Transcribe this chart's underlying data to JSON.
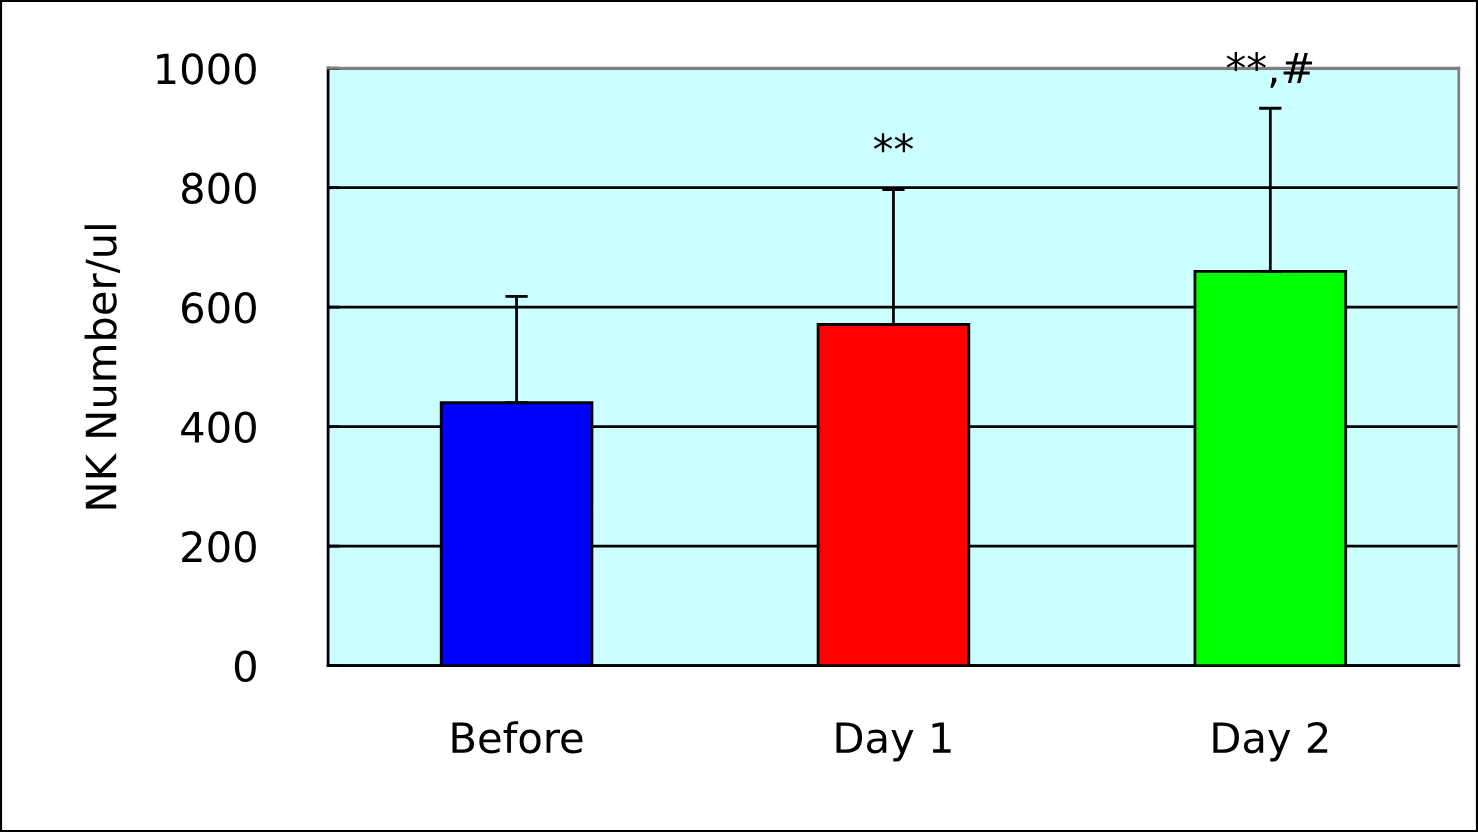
{
  "chart_data": {
    "type": "bar",
    "ylabel": "NK Number/ul",
    "categories": [
      "Before",
      "Day 1",
      "Day 2"
    ],
    "values": [
      440,
      571,
      660
    ],
    "colors": [
      "#0000ff",
      "#ff0000",
      "#00ff00"
    ],
    "errors": [
      [
        440,
        618
      ],
      [
        571,
        797
      ],
      [
        660,
        933
      ]
    ],
    "ylim": [
      0,
      1000
    ],
    "yticks": [
      0,
      200,
      400,
      600,
      800,
      1000
    ],
    "grid": "y",
    "annotations": [
      "**",
      "**,#"
    ]
  }
}
